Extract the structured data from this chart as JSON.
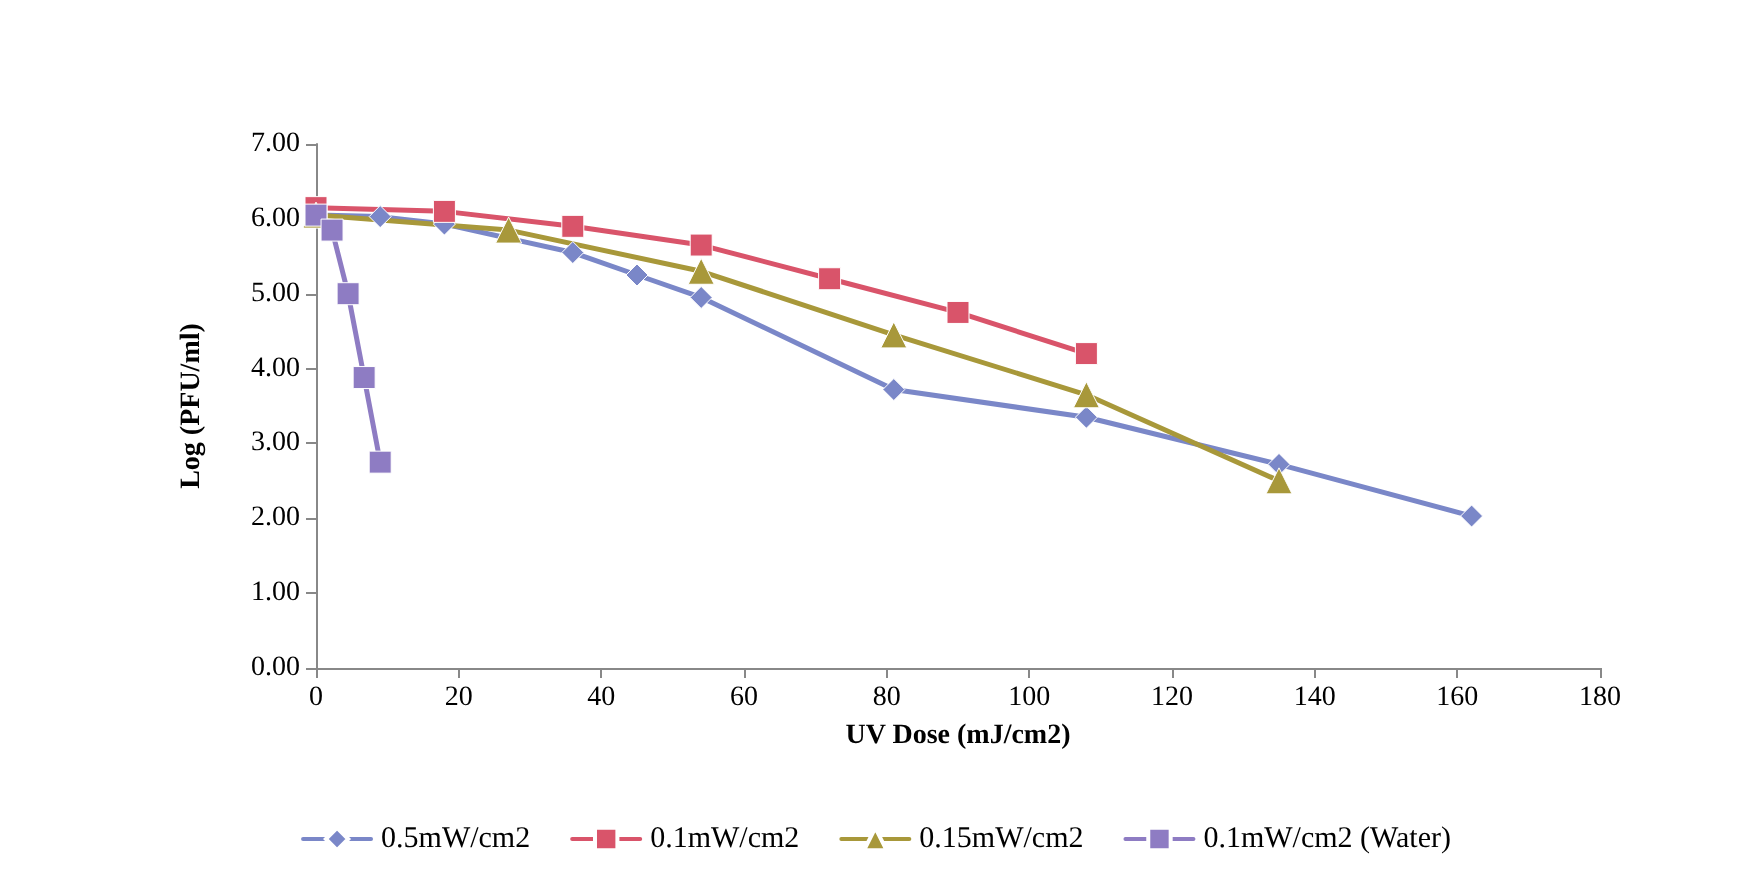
{
  "chart_data": {
    "type": "line",
    "xlabel": "UV Dose (mJ/cm2)",
    "ylabel": "Log (PFU/ml)",
    "xlim": [
      0,
      180
    ],
    "xticks": [
      0,
      20,
      40,
      60,
      80,
      100,
      120,
      140,
      160,
      180
    ],
    "ylim": [
      0,
      7
    ],
    "yticks": [
      {
        "value": 0,
        "label": "0.00"
      },
      {
        "value": 1,
        "label": "1.00"
      },
      {
        "value": 2,
        "label": "2.00"
      },
      {
        "value": 3,
        "label": "3.00"
      },
      {
        "value": 4,
        "label": "4.00"
      },
      {
        "value": 5,
        "label": "5.00"
      },
      {
        "value": 6,
        "label": "6.00"
      },
      {
        "value": 7,
        "label": "7.00"
      }
    ],
    "grid": false,
    "legend": "bottom",
    "line_style": "solid",
    "series": [
      {
        "name": "0.5mW/cm2",
        "color": "#7a87c8",
        "marker": "diamond",
        "x": [
          0,
          9,
          18,
          36,
          45,
          54,
          81,
          108,
          135,
          162
        ],
        "values": [
          6.05,
          6.03,
          5.93,
          5.55,
          5.25,
          4.95,
          3.72,
          3.35,
          2.72,
          2.03
        ]
      },
      {
        "name": "0.1mW/cm2",
        "color": "#d9546a",
        "marker": "square",
        "x": [
          0,
          18,
          36,
          54,
          72,
          90,
          108
        ],
        "values": [
          6.15,
          6.1,
          5.9,
          5.65,
          5.2,
          4.75,
          4.2
        ]
      },
      {
        "name": "0.15mW/cm2",
        "color": "#a8983a",
        "marker": "triangle",
        "x": [
          0,
          27,
          54,
          81,
          108,
          135
        ],
        "values": [
          6.05,
          5.85,
          5.3,
          4.45,
          3.65,
          2.5
        ]
      },
      {
        "name": "0.1mW/cm2 (Water)",
        "color": "#8e7cc3",
        "marker": "square",
        "x": [
          0,
          2.25,
          4.5,
          6.75,
          9
        ],
        "values": [
          6.05,
          5.85,
          5.0,
          3.88,
          2.75
        ]
      }
    ]
  }
}
